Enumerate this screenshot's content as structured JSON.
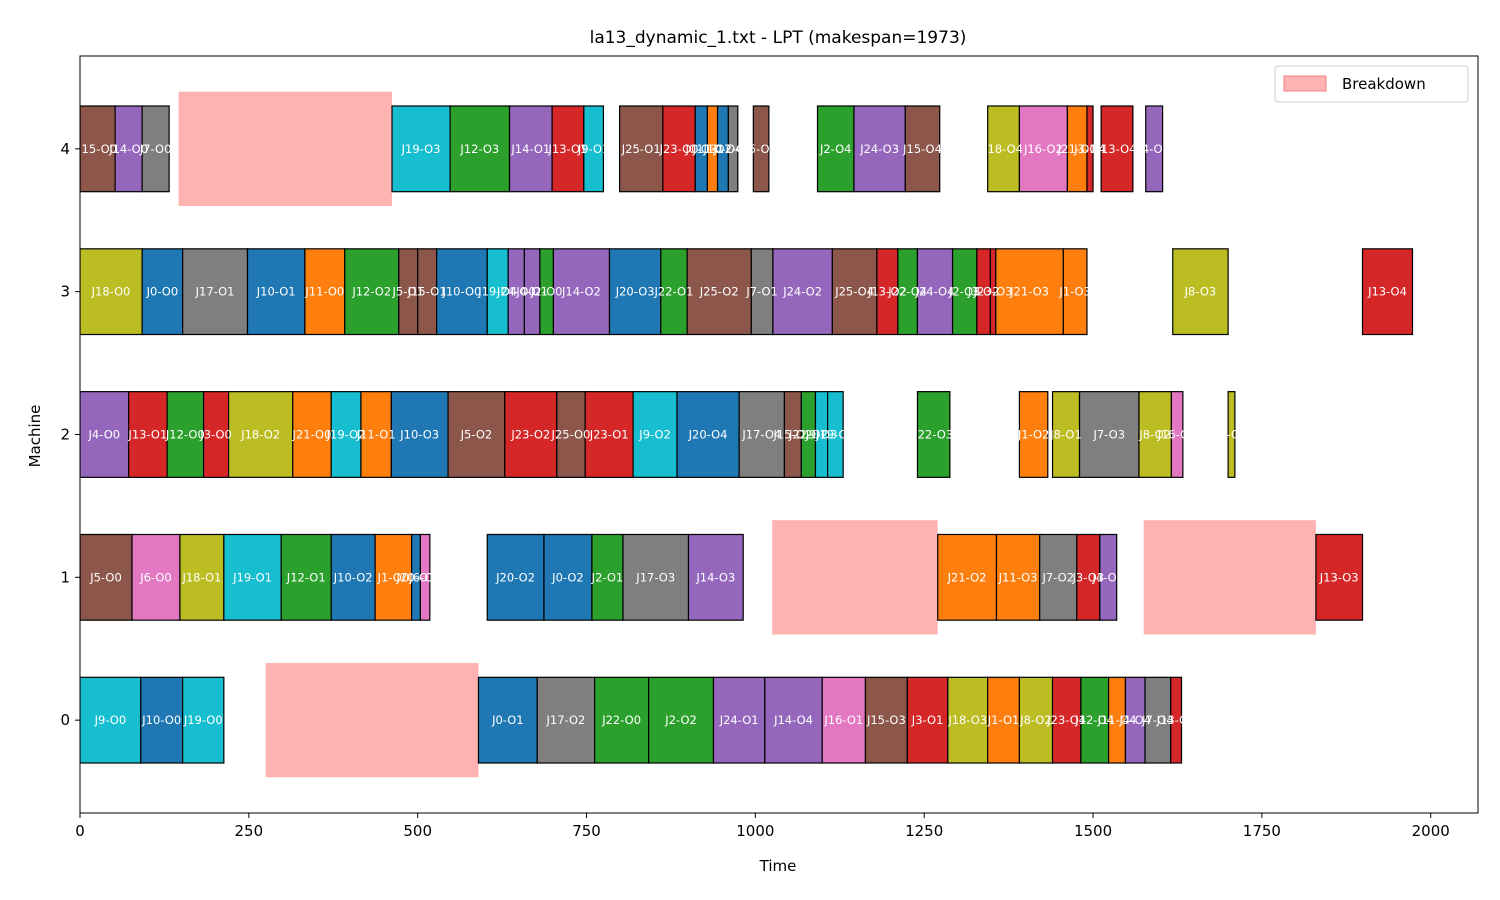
{
  "chart_data": {
    "type": "gantt",
    "title": "la13_dynamic_1.txt - LPT (makespan=1973)",
    "xlabel": "Time",
    "ylabel": "Machine",
    "xlim": [
      0,
      2070
    ],
    "ylim": [
      -0.65,
      4.65
    ],
    "x_ticks": [
      0,
      250,
      500,
      750,
      1000,
      1250,
      1500,
      1750,
      2000
    ],
    "machines": [
      0,
      1,
      2,
      3,
      4
    ],
    "legend": {
      "label": "Breakdown",
      "position": "top-right",
      "color": "#ffb2b2"
    },
    "breakdown_color": "#ffb2b2",
    "palette": {
      "0": "#1f77b4",
      "1": "#ff7f0e",
      "2": "#2ca02c",
      "3": "#d62728",
      "4": "#9467bd",
      "5": "#8c564b",
      "6": "#e377c2",
      "7": "#7f7f7f",
      "8": "#bcbd22",
      "9": "#17becf"
    },
    "breakdowns": [
      {
        "machine": 4,
        "start": 146,
        "end": 462
      },
      {
        "machine": 0,
        "start": 275,
        "end": 590
      },
      {
        "machine": 1,
        "start": 1025,
        "end": 1270
      },
      {
        "machine": 1,
        "start": 1575,
        "end": 1830
      }
    ],
    "tasks": [
      {
        "machine": 0,
        "job": 9,
        "label": "J9-O0",
        "start": 0,
        "end": 90
      },
      {
        "machine": 0,
        "job": 10,
        "label": "J10-O0",
        "start": 90,
        "end": 152
      },
      {
        "machine": 0,
        "job": 19,
        "label": "J19-O0",
        "start": 152,
        "end": 213
      },
      {
        "machine": 0,
        "job": 0,
        "label": "J0-O1",
        "start": 590,
        "end": 677
      },
      {
        "machine": 0,
        "job": 17,
        "label": "J17-O2",
        "start": 677,
        "end": 762
      },
      {
        "machine": 0,
        "job": 22,
        "label": "J22-O0",
        "start": 762,
        "end": 842
      },
      {
        "machine": 0,
        "job": 2,
        "label": "J2-O2",
        "start": 842,
        "end": 938
      },
      {
        "machine": 0,
        "job": 24,
        "label": "J24-O1",
        "start": 938,
        "end": 1014
      },
      {
        "machine": 0,
        "job": 14,
        "label": "J14-O4",
        "start": 1014,
        "end": 1099
      },
      {
        "machine": 0,
        "job": 16,
        "label": "J16-O1",
        "start": 1099,
        "end": 1163
      },
      {
        "machine": 0,
        "job": 15,
        "label": "J15-O3",
        "start": 1163,
        "end": 1225
      },
      {
        "machine": 0,
        "job": 3,
        "label": "J3-O1",
        "start": 1225,
        "end": 1285
      },
      {
        "machine": 0,
        "job": 18,
        "label": "J18-O3",
        "start": 1285,
        "end": 1344
      },
      {
        "machine": 0,
        "job": 1,
        "label": "J1-O1",
        "start": 1344,
        "end": 1391
      },
      {
        "machine": 0,
        "job": 8,
        "label": "J8-O2",
        "start": 1391,
        "end": 1440
      },
      {
        "machine": 0,
        "job": 23,
        "label": "J23-O4",
        "start": 1440,
        "end": 1482
      },
      {
        "machine": 0,
        "job": 12,
        "label": "J12-O4",
        "start": 1482,
        "end": 1523
      },
      {
        "machine": 0,
        "job": 11,
        "label": "J11-O4",
        "start": 1523,
        "end": 1548
      },
      {
        "machine": 0,
        "job": 4,
        "label": "J4-O4",
        "start": 1548,
        "end": 1577
      },
      {
        "machine": 0,
        "job": 7,
        "label": "J7-O4",
        "start": 1577,
        "end": 1615
      },
      {
        "machine": 0,
        "job": 13,
        "label": "J13-O0",
        "start": 1615,
        "end": 1631
      },
      {
        "machine": 1,
        "job": 5,
        "label": "J5-O0",
        "start": 0,
        "end": 77
      },
      {
        "machine": 1,
        "job": 6,
        "label": "J6-O0",
        "start": 77,
        "end": 148
      },
      {
        "machine": 1,
        "job": 18,
        "label": "J18-O1",
        "start": 148,
        "end": 213
      },
      {
        "machine": 1,
        "job": 19,
        "label": "J19-O1",
        "start": 213,
        "end": 298
      },
      {
        "machine": 1,
        "job": 12,
        "label": "J12-O1",
        "start": 298,
        "end": 372
      },
      {
        "machine": 1,
        "job": 10,
        "label": "J10-O2",
        "start": 372,
        "end": 437
      },
      {
        "machine": 1,
        "job": 1,
        "label": "J1-O0",
        "start": 437,
        "end": 491
      },
      {
        "machine": 1,
        "job": 20,
        "label": "J20-O1",
        "start": 491,
        "end": 504
      },
      {
        "machine": 1,
        "job": 6,
        "label": "J6-O1",
        "start": 504,
        "end": 518
      },
      {
        "machine": 1,
        "job": 20,
        "label": "J20-O2",
        "start": 603,
        "end": 687
      },
      {
        "machine": 1,
        "job": 0,
        "label": "J0-O2",
        "start": 687,
        "end": 758
      },
      {
        "machine": 1,
        "job": 2,
        "label": "J2-O1",
        "start": 758,
        "end": 804
      },
      {
        "machine": 1,
        "job": 17,
        "label": "J17-O3",
        "start": 804,
        "end": 901
      },
      {
        "machine": 1,
        "job": 14,
        "label": "J14-O3",
        "start": 901,
        "end": 982
      },
      {
        "machine": 1,
        "job": 21,
        "label": "J21-O2",
        "start": 1270,
        "end": 1357
      },
      {
        "machine": 1,
        "job": 11,
        "label": "J11-O3",
        "start": 1357,
        "end": 1421
      },
      {
        "machine": 1,
        "job": 7,
        "label": "J7-O2",
        "start": 1421,
        "end": 1476
      },
      {
        "machine": 1,
        "job": 3,
        "label": "J3-O3",
        "start": 1476,
        "end": 1510
      },
      {
        "machine": 1,
        "job": 4,
        "label": "J4-O3",
        "start": 1510,
        "end": 1535
      },
      {
        "machine": 1,
        "job": 13,
        "label": "J13-O3",
        "start": 1830,
        "end": 1899
      },
      {
        "machine": 2,
        "job": 4,
        "label": "J4-O0",
        "start": 0,
        "end": 72
      },
      {
        "machine": 2,
        "job": 13,
        "label": "J13-O1",
        "start": 72,
        "end": 129
      },
      {
        "machine": 2,
        "job": 12,
        "label": "J12-O0",
        "start": 129,
        "end": 183
      },
      {
        "machine": 2,
        "job": 3,
        "label": "J3-O0",
        "start": 183,
        "end": 220
      },
      {
        "machine": 2,
        "job": 18,
        "label": "J18-O2",
        "start": 220,
        "end": 315
      },
      {
        "machine": 2,
        "job": 21,
        "label": "J21-O0",
        "start": 315,
        "end": 372
      },
      {
        "machine": 2,
        "job": 19,
        "label": "J19-O2",
        "start": 372,
        "end": 416
      },
      {
        "machine": 2,
        "job": 11,
        "label": "J11-O1",
        "start": 416,
        "end": 461
      },
      {
        "machine": 2,
        "job": 10,
        "label": "J10-O3",
        "start": 461,
        "end": 545
      },
      {
        "machine": 2,
        "job": 5,
        "label": "J5-O2",
        "start": 545,
        "end": 629
      },
      {
        "machine": 2,
        "job": 23,
        "label": "J23-O2",
        "start": 629,
        "end": 706
      },
      {
        "machine": 2,
        "job": 25,
        "label": "J25-O0",
        "start": 706,
        "end": 748
      },
      {
        "machine": 2,
        "job": 23,
        "label": "J23-O1",
        "start": 748,
        "end": 819
      },
      {
        "machine": 2,
        "job": 9,
        "label": "J9-O2",
        "start": 819,
        "end": 884
      },
      {
        "machine": 2,
        "job": 20,
        "label": "J20-O4",
        "start": 884,
        "end": 976
      },
      {
        "machine": 2,
        "job": 17,
        "label": "J17-O4",
        "start": 976,
        "end": 1043
      },
      {
        "machine": 2,
        "job": 15,
        "label": "J15-O2",
        "start": 1043,
        "end": 1068
      },
      {
        "machine": 2,
        "job": 22,
        "label": "J22-O2",
        "start": 1068,
        "end": 1089
      },
      {
        "machine": 2,
        "job": 9,
        "label": "J9-O3",
        "start": 1089,
        "end": 1107
      },
      {
        "machine": 2,
        "job": 19,
        "label": "J19-O3",
        "start": 1107,
        "end": 1130
      },
      {
        "machine": 2,
        "job": 22,
        "label": "J22-O3",
        "start": 1240,
        "end": 1288
      },
      {
        "machine": 2,
        "job": 1,
        "label": "J1-O2",
        "start": 1391,
        "end": 1433
      },
      {
        "machine": 2,
        "job": 8,
        "label": "J8-O1",
        "start": 1440,
        "end": 1480
      },
      {
        "machine": 2,
        "job": 7,
        "label": "J7-O3",
        "start": 1480,
        "end": 1568
      },
      {
        "machine": 2,
        "job": 8,
        "label": "J8-O2",
        "start": 1568,
        "end": 1616
      },
      {
        "machine": 2,
        "job": 16,
        "label": "J16-O3",
        "start": 1616,
        "end": 1633
      },
      {
        "machine": 2,
        "job": 8,
        "label": "J8-O4",
        "start": 1700,
        "end": 1710
      },
      {
        "machine": 3,
        "job": 18,
        "label": "J18-O0",
        "start": 0,
        "end": 92
      },
      {
        "machine": 3,
        "job": 0,
        "label": "J0-O0",
        "start": 92,
        "end": 152
      },
      {
        "machine": 3,
        "job": 17,
        "label": "J17-O1",
        "start": 152,
        "end": 248
      },
      {
        "machine": 3,
        "job": 10,
        "label": "J10-O1",
        "start": 248,
        "end": 333
      },
      {
        "machine": 3,
        "job": 11,
        "label": "J11-O0",
        "start": 333,
        "end": 392
      },
      {
        "machine": 3,
        "job": 12,
        "label": "J12-O2",
        "start": 392,
        "end": 472
      },
      {
        "machine": 3,
        "job": 5,
        "label": "J5-O1",
        "start": 472,
        "end": 500
      },
      {
        "machine": 3,
        "job": 15,
        "label": "J15-O1",
        "start": 500,
        "end": 528
      },
      {
        "machine": 3,
        "job": 10,
        "label": "J10-O0",
        "start": 528,
        "end": 603
      },
      {
        "machine": 3,
        "job": 19,
        "label": "J19-O4",
        "start": 603,
        "end": 634
      },
      {
        "machine": 3,
        "job": 24,
        "label": "J24-O0",
        "start": 634,
        "end": 658
      },
      {
        "machine": 3,
        "job": 4,
        "label": "J4-O1",
        "start": 658,
        "end": 681
      },
      {
        "machine": 3,
        "job": 2,
        "label": "J2-O0",
        "start": 681,
        "end": 701
      },
      {
        "machine": 3,
        "job": 14,
        "label": "J14-O2",
        "start": 701,
        "end": 784
      },
      {
        "machine": 3,
        "job": 20,
        "label": "J20-O3",
        "start": 784,
        "end": 860
      },
      {
        "machine": 3,
        "job": 22,
        "label": "J22-O1",
        "start": 860,
        "end": 899
      },
      {
        "machine": 3,
        "job": 25,
        "label": "J25-O2",
        "start": 899,
        "end": 994
      },
      {
        "machine": 3,
        "job": 7,
        "label": "J7-O1",
        "start": 994,
        "end": 1026
      },
      {
        "machine": 3,
        "job": 24,
        "label": "J24-O2",
        "start": 1026,
        "end": 1114
      },
      {
        "machine": 3,
        "job": 25,
        "label": "J25-O4",
        "start": 1114,
        "end": 1180
      },
      {
        "machine": 3,
        "job": 13,
        "label": "J13-O2",
        "start": 1180,
        "end": 1211
      },
      {
        "machine": 3,
        "job": 22,
        "label": "J22-O4",
        "start": 1211,
        "end": 1240
      },
      {
        "machine": 3,
        "job": 24,
        "label": "J24-O4",
        "start": 1240,
        "end": 1292
      },
      {
        "machine": 3,
        "job": 2,
        "label": "J2-O3",
        "start": 1292,
        "end": 1328
      },
      {
        "machine": 3,
        "job": 3,
        "label": "J3-O2",
        "start": 1328,
        "end": 1348
      },
      {
        "machine": 3,
        "job": 23,
        "label": "J23-O3",
        "start": 1348,
        "end": 1356
      },
      {
        "machine": 3,
        "job": 21,
        "label": "J21-O3",
        "start": 1356,
        "end": 1456
      },
      {
        "machine": 3,
        "job": 1,
        "label": "J1-O3",
        "start": 1456,
        "end": 1491
      },
      {
        "machine": 3,
        "job": 8,
        "label": "J8-O3",
        "start": 1618,
        "end": 1700
      },
      {
        "machine": 3,
        "job": 13,
        "label": "J13-O4",
        "start": 1899,
        "end": 1973
      },
      {
        "machine": 4,
        "job": 15,
        "label": "J15-O0",
        "start": 0,
        "end": 52
      },
      {
        "machine": 4,
        "job": 14,
        "label": "J14-O0",
        "start": 52,
        "end": 92
      },
      {
        "machine": 4,
        "job": 7,
        "label": "J7-O0",
        "start": 92,
        "end": 132
      },
      {
        "machine": 4,
        "job": 19,
        "label": "J19-O3",
        "start": 462,
        "end": 548
      },
      {
        "machine": 4,
        "job": 12,
        "label": "J12-O3",
        "start": 548,
        "end": 636
      },
      {
        "machine": 4,
        "job": 14,
        "label": "J14-O1",
        "start": 636,
        "end": 699
      },
      {
        "machine": 4,
        "job": 13,
        "label": "J13-O1",
        "start": 699,
        "end": 746
      },
      {
        "machine": 4,
        "job": 9,
        "label": "J9-O1",
        "start": 746,
        "end": 775
      },
      {
        "machine": 4,
        "job": 25,
        "label": "J25-O1",
        "start": 799,
        "end": 863
      },
      {
        "machine": 4,
        "job": 23,
        "label": "J23-O0",
        "start": 863,
        "end": 911
      },
      {
        "machine": 4,
        "job": 0,
        "label": "J0-O3",
        "start": 911,
        "end": 929
      },
      {
        "machine": 4,
        "job": 11,
        "label": "J11-O2",
        "start": 929,
        "end": 944
      },
      {
        "machine": 4,
        "job": 10,
        "label": "J10-O4",
        "start": 944,
        "end": 960
      },
      {
        "machine": 4,
        "job": 17,
        "label": "J17-O0",
        "start": 960,
        "end": 974
      },
      {
        "machine": 4,
        "job": 5,
        "label": "J5-O3",
        "start": 997,
        "end": 1020
      },
      {
        "machine": 4,
        "job": 2,
        "label": "J2-O4",
        "start": 1092,
        "end": 1146
      },
      {
        "machine": 4,
        "job": 24,
        "label": "J24-O3",
        "start": 1146,
        "end": 1222
      },
      {
        "machine": 4,
        "job": 15,
        "label": "J15-O4",
        "start": 1222,
        "end": 1273
      },
      {
        "machine": 4,
        "job": 18,
        "label": "J18-O4",
        "start": 1344,
        "end": 1391
      },
      {
        "machine": 4,
        "job": 16,
        "label": "J16-O2",
        "start": 1391,
        "end": 1462
      },
      {
        "machine": 4,
        "job": 21,
        "label": "J21-O1",
        "start": 1462,
        "end": 1491
      },
      {
        "machine": 4,
        "job": 3,
        "label": "J3-O4",
        "start": 1491,
        "end": 1500
      },
      {
        "machine": 4,
        "job": 13,
        "label": "J13-O4",
        "start": 1512,
        "end": 1559
      },
      {
        "machine": 4,
        "job": 4,
        "label": "J4-O2",
        "start": 1578,
        "end": 1603
      }
    ]
  }
}
